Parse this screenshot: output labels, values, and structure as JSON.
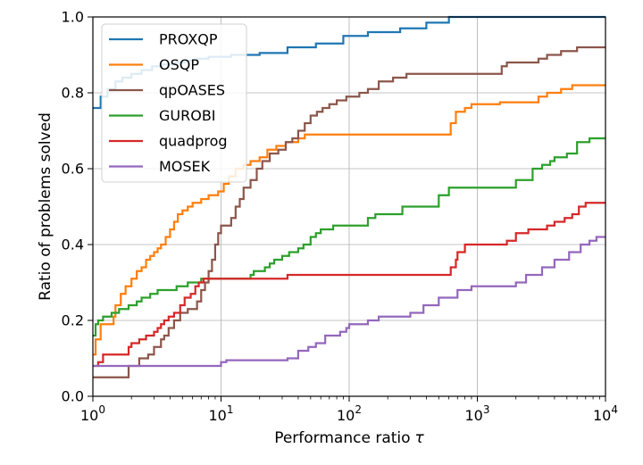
{
  "chart_data": {
    "type": "line",
    "line_style": "step-post",
    "x_scale": "log",
    "xlabel_text": "Performance ratio",
    "xlabel_symbol": "τ",
    "ylabel": "Ratio of problems solved",
    "xlim": [
      1,
      10000
    ],
    "ylim": [
      0.0,
      1.0
    ],
    "x_ticks": [
      {
        "value": 1,
        "base": "10",
        "exp": "0"
      },
      {
        "value": 10,
        "base": "10",
        "exp": "1"
      },
      {
        "value": 100,
        "base": "10",
        "exp": "2"
      },
      {
        "value": 1000,
        "base": "10",
        "exp": "3"
      },
      {
        "value": 10000,
        "base": "10",
        "exp": "4"
      }
    ],
    "y_ticks": [
      {
        "value": 0.0,
        "label": "0.0"
      },
      {
        "value": 0.2,
        "label": "0.2"
      },
      {
        "value": 0.4,
        "label": "0.4"
      },
      {
        "value": 0.6,
        "label": "0.6"
      },
      {
        "value": 0.8,
        "label": "0.8"
      },
      {
        "value": 1.0,
        "label": "1.0"
      }
    ],
    "grid": true,
    "legend_position": "top-left",
    "series": [
      {
        "name": "PROXQP",
        "color": "#1f77b4",
        "points": [
          [
            1,
            0.76
          ],
          [
            1.15,
            0.79
          ],
          [
            1.3,
            0.81
          ],
          [
            1.5,
            0.83
          ],
          [
            1.7,
            0.84
          ],
          [
            2.0,
            0.85
          ],
          [
            2.4,
            0.86
          ],
          [
            2.9,
            0.87
          ],
          [
            3.5,
            0.875
          ],
          [
            4.3,
            0.88
          ],
          [
            5.3,
            0.885
          ],
          [
            6.5,
            0.89
          ],
          [
            8,
            0.895
          ],
          [
            10,
            0.895
          ],
          [
            12,
            0.9
          ],
          [
            15,
            0.9
          ],
          [
            20,
            0.905
          ],
          [
            33,
            0.92
          ],
          [
            55,
            0.93
          ],
          [
            90,
            0.95
          ],
          [
            140,
            0.96
          ],
          [
            250,
            0.97
          ],
          [
            400,
            0.985
          ],
          [
            600,
            1.0
          ],
          [
            10000,
            1.0
          ]
        ]
      },
      {
        "name": "OSQP",
        "color": "#ff7f0e",
        "points": [
          [
            1,
            0.11
          ],
          [
            1.05,
            0.15
          ],
          [
            1.15,
            0.19
          ],
          [
            1.45,
            0.21
          ],
          [
            1.5,
            0.24
          ],
          [
            1.65,
            0.27
          ],
          [
            1.8,
            0.29
          ],
          [
            2.0,
            0.31
          ],
          [
            2.2,
            0.33
          ],
          [
            2.4,
            0.34
          ],
          [
            2.6,
            0.36
          ],
          [
            2.8,
            0.37
          ],
          [
            3.0,
            0.38
          ],
          [
            3.2,
            0.39
          ],
          [
            3.4,
            0.4
          ],
          [
            3.7,
            0.42
          ],
          [
            4.0,
            0.44
          ],
          [
            4.3,
            0.46
          ],
          [
            4.6,
            0.48
          ],
          [
            5.0,
            0.49
          ],
          [
            5.5,
            0.5
          ],
          [
            6.0,
            0.51
          ],
          [
            7.0,
            0.52
          ],
          [
            8.0,
            0.53
          ],
          [
            9.5,
            0.54
          ],
          [
            10.5,
            0.56
          ],
          [
            11.5,
            0.58
          ],
          [
            13,
            0.6
          ],
          [
            15,
            0.61
          ],
          [
            17,
            0.62
          ],
          [
            20,
            0.63
          ],
          [
            23,
            0.65
          ],
          [
            27,
            0.66
          ],
          [
            32,
            0.67
          ],
          [
            40,
            0.68
          ],
          [
            45,
            0.69
          ],
          [
            200,
            0.69
          ],
          [
            600,
            0.69
          ],
          [
            620,
            0.72
          ],
          [
            680,
            0.75
          ],
          [
            800,
            0.76
          ],
          [
            900,
            0.77
          ],
          [
            1500,
            0.775
          ],
          [
            3000,
            0.79
          ],
          [
            3500,
            0.8
          ],
          [
            4500,
            0.81
          ],
          [
            5500,
            0.82
          ],
          [
            10000,
            0.82
          ]
        ]
      },
      {
        "name": "qpOASES",
        "color": "#8c564b",
        "points": [
          [
            1,
            0.05
          ],
          [
            1.2,
            0.05
          ],
          [
            1.9,
            0.08
          ],
          [
            2.3,
            0.1
          ],
          [
            2.7,
            0.11
          ],
          [
            3.0,
            0.13
          ],
          [
            3.4,
            0.15
          ],
          [
            3.6,
            0.16
          ],
          [
            3.9,
            0.18
          ],
          [
            4.3,
            0.2
          ],
          [
            4.8,
            0.22
          ],
          [
            5.5,
            0.23
          ],
          [
            6.5,
            0.25
          ],
          [
            7.0,
            0.28
          ],
          [
            7.5,
            0.3
          ],
          [
            8.0,
            0.33
          ],
          [
            8.5,
            0.36
          ],
          [
            9.0,
            0.4
          ],
          [
            9.5,
            0.43
          ],
          [
            10,
            0.45
          ],
          [
            11,
            0.45
          ],
          [
            12,
            0.47
          ],
          [
            13,
            0.5
          ],
          [
            14,
            0.52
          ],
          [
            15,
            0.55
          ],
          [
            17,
            0.57
          ],
          [
            19,
            0.6
          ],
          [
            21,
            0.62
          ],
          [
            24,
            0.64
          ],
          [
            28,
            0.65
          ],
          [
            32,
            0.67
          ],
          [
            36,
            0.68
          ],
          [
            40,
            0.7
          ],
          [
            45,
            0.72
          ],
          [
            50,
            0.74
          ],
          [
            56,
            0.75
          ],
          [
            62,
            0.76
          ],
          [
            70,
            0.77
          ],
          [
            80,
            0.78
          ],
          [
            95,
            0.79
          ],
          [
            120,
            0.8
          ],
          [
            140,
            0.81
          ],
          [
            170,
            0.83
          ],
          [
            220,
            0.84
          ],
          [
            280,
            0.85
          ],
          [
            1500,
            0.85
          ],
          [
            1550,
            0.87
          ],
          [
            1700,
            0.88
          ],
          [
            3000,
            0.89
          ],
          [
            3500,
            0.9
          ],
          [
            4500,
            0.91
          ],
          [
            6000,
            0.92
          ],
          [
            10000,
            0.92
          ]
        ]
      },
      {
        "name": "GUROBI",
        "color": "#2ca02c",
        "points": [
          [
            1,
            0.16
          ],
          [
            1.05,
            0.19
          ],
          [
            1.1,
            0.2
          ],
          [
            1.2,
            0.21
          ],
          [
            1.4,
            0.22
          ],
          [
            1.6,
            0.23
          ],
          [
            1.9,
            0.24
          ],
          [
            2.2,
            0.25
          ],
          [
            2.4,
            0.26
          ],
          [
            2.8,
            0.27
          ],
          [
            3.2,
            0.28
          ],
          [
            4.0,
            0.28
          ],
          [
            4.5,
            0.29
          ],
          [
            5.5,
            0.3
          ],
          [
            7.0,
            0.31
          ],
          [
            9.0,
            0.31
          ],
          [
            17,
            0.32
          ],
          [
            18,
            0.33
          ],
          [
            19,
            0.33
          ],
          [
            22,
            0.34
          ],
          [
            24,
            0.35
          ],
          [
            26,
            0.36
          ],
          [
            30,
            0.37
          ],
          [
            34,
            0.38
          ],
          [
            40,
            0.39
          ],
          [
            44,
            0.4
          ],
          [
            50,
            0.42
          ],
          [
            55,
            0.43
          ],
          [
            60,
            0.44
          ],
          [
            75,
            0.45
          ],
          [
            100,
            0.45
          ],
          [
            140,
            0.47
          ],
          [
            160,
            0.48
          ],
          [
            260,
            0.5
          ],
          [
            500,
            0.53
          ],
          [
            600,
            0.55
          ],
          [
            1500,
            0.55
          ],
          [
            2000,
            0.57
          ],
          [
            2700,
            0.6
          ],
          [
            3200,
            0.61
          ],
          [
            3700,
            0.62
          ],
          [
            4000,
            0.63
          ],
          [
            5000,
            0.64
          ],
          [
            6000,
            0.67
          ],
          [
            7500,
            0.68
          ],
          [
            10000,
            0.68
          ]
        ]
      },
      {
        "name": "quadprog",
        "color": "#d62728",
        "points": [
          [
            1,
            0.08
          ],
          [
            1.1,
            0.09
          ],
          [
            1.2,
            0.11
          ],
          [
            1.9,
            0.13
          ],
          [
            2.0,
            0.14
          ],
          [
            2.3,
            0.15
          ],
          [
            2.6,
            0.16
          ],
          [
            3.0,
            0.17
          ],
          [
            3.2,
            0.18
          ],
          [
            3.4,
            0.19
          ],
          [
            3.6,
            0.2
          ],
          [
            3.9,
            0.21
          ],
          [
            4.3,
            0.22
          ],
          [
            4.8,
            0.24
          ],
          [
            5.2,
            0.26
          ],
          [
            5.8,
            0.27
          ],
          [
            6.3,
            0.29
          ],
          [
            6.7,
            0.3
          ],
          [
            7.3,
            0.31
          ],
          [
            30,
            0.31
          ],
          [
            33,
            0.32
          ],
          [
            600,
            0.32
          ],
          [
            620,
            0.34
          ],
          [
            680,
            0.36
          ],
          [
            700,
            0.38
          ],
          [
            800,
            0.4
          ],
          [
            1500,
            0.4
          ],
          [
            1700,
            0.41
          ],
          [
            2000,
            0.43
          ],
          [
            2500,
            0.44
          ],
          [
            3500,
            0.45
          ],
          [
            4000,
            0.46
          ],
          [
            4800,
            0.47
          ],
          [
            5500,
            0.48
          ],
          [
            6200,
            0.5
          ],
          [
            7000,
            0.51
          ],
          [
            10000,
            0.51
          ]
        ]
      },
      {
        "name": "MOSEK",
        "color": "#9467bd",
        "points": [
          [
            1,
            0.08
          ],
          [
            10,
            0.09
          ],
          [
            11,
            0.095
          ],
          [
            33,
            0.1
          ],
          [
            40,
            0.12
          ],
          [
            48,
            0.13
          ],
          [
            55,
            0.14
          ],
          [
            65,
            0.16
          ],
          [
            85,
            0.17
          ],
          [
            95,
            0.18
          ],
          [
            100,
            0.19
          ],
          [
            140,
            0.2
          ],
          [
            170,
            0.21
          ],
          [
            300,
            0.22
          ],
          [
            380,
            0.24
          ],
          [
            500,
            0.26
          ],
          [
            700,
            0.28
          ],
          [
            900,
            0.29
          ],
          [
            1700,
            0.29
          ],
          [
            2000,
            0.3
          ],
          [
            2400,
            0.32
          ],
          [
            3200,
            0.34
          ],
          [
            4000,
            0.36
          ],
          [
            5200,
            0.38
          ],
          [
            6400,
            0.4
          ],
          [
            7500,
            0.41
          ],
          [
            8500,
            0.42
          ],
          [
            10000,
            0.42
          ]
        ]
      }
    ]
  }
}
